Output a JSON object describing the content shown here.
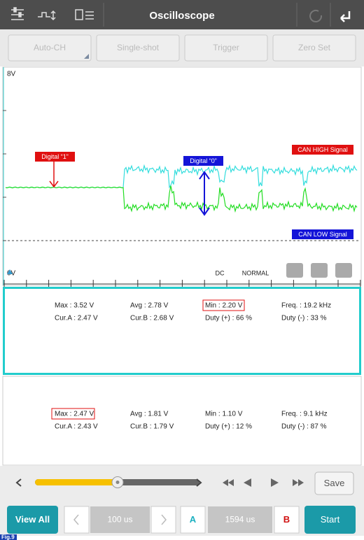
{
  "header": {
    "title": "Oscilloscope"
  },
  "toolbar": [
    "Auto-CH",
    "Single-shot",
    "Trigger",
    "Zero Set"
  ],
  "scope": {
    "y_top_label": "8V",
    "y_bottom_label": "0V",
    "annotations": {
      "digital_one": "Digital “1”",
      "digital_zero": "Digital “0”",
      "can_high": "CAN HIGH Signal",
      "can_low": "CAN LOW Signal"
    },
    "coupling": "DC",
    "mode": "NORMAL"
  },
  "channels": [
    {
      "stats": [
        "Max : 3.52 V",
        "Avg : 2.78 V",
        "Min : 2.20 V",
        "Freq. : 19.2 kHz",
        "Cur.A : 2.47 V",
        "Cur.B : 2.68 V",
        "Duty (+) : 66 %",
        "Duty (-) : 33 %"
      ]
    },
    {
      "stats": [
        "Max : 2.47 V",
        "Avg : 1.81 V",
        "Min : 1.10 V",
        "Freq. : 9.1 kHz",
        "Cur.A : 2.43 V",
        "Cur.B : 1.79 V",
        "Duty (+) : 12 %",
        "Duty (-) : 87 %"
      ]
    }
  ],
  "controls": {
    "save": "Save",
    "view_all": "View All",
    "time_base": "100 us",
    "cursor_a": "A",
    "cursor_delta": "1594 us",
    "cursor_b": "B",
    "start": "Start"
  },
  "figure_label": "Fig.9"
}
